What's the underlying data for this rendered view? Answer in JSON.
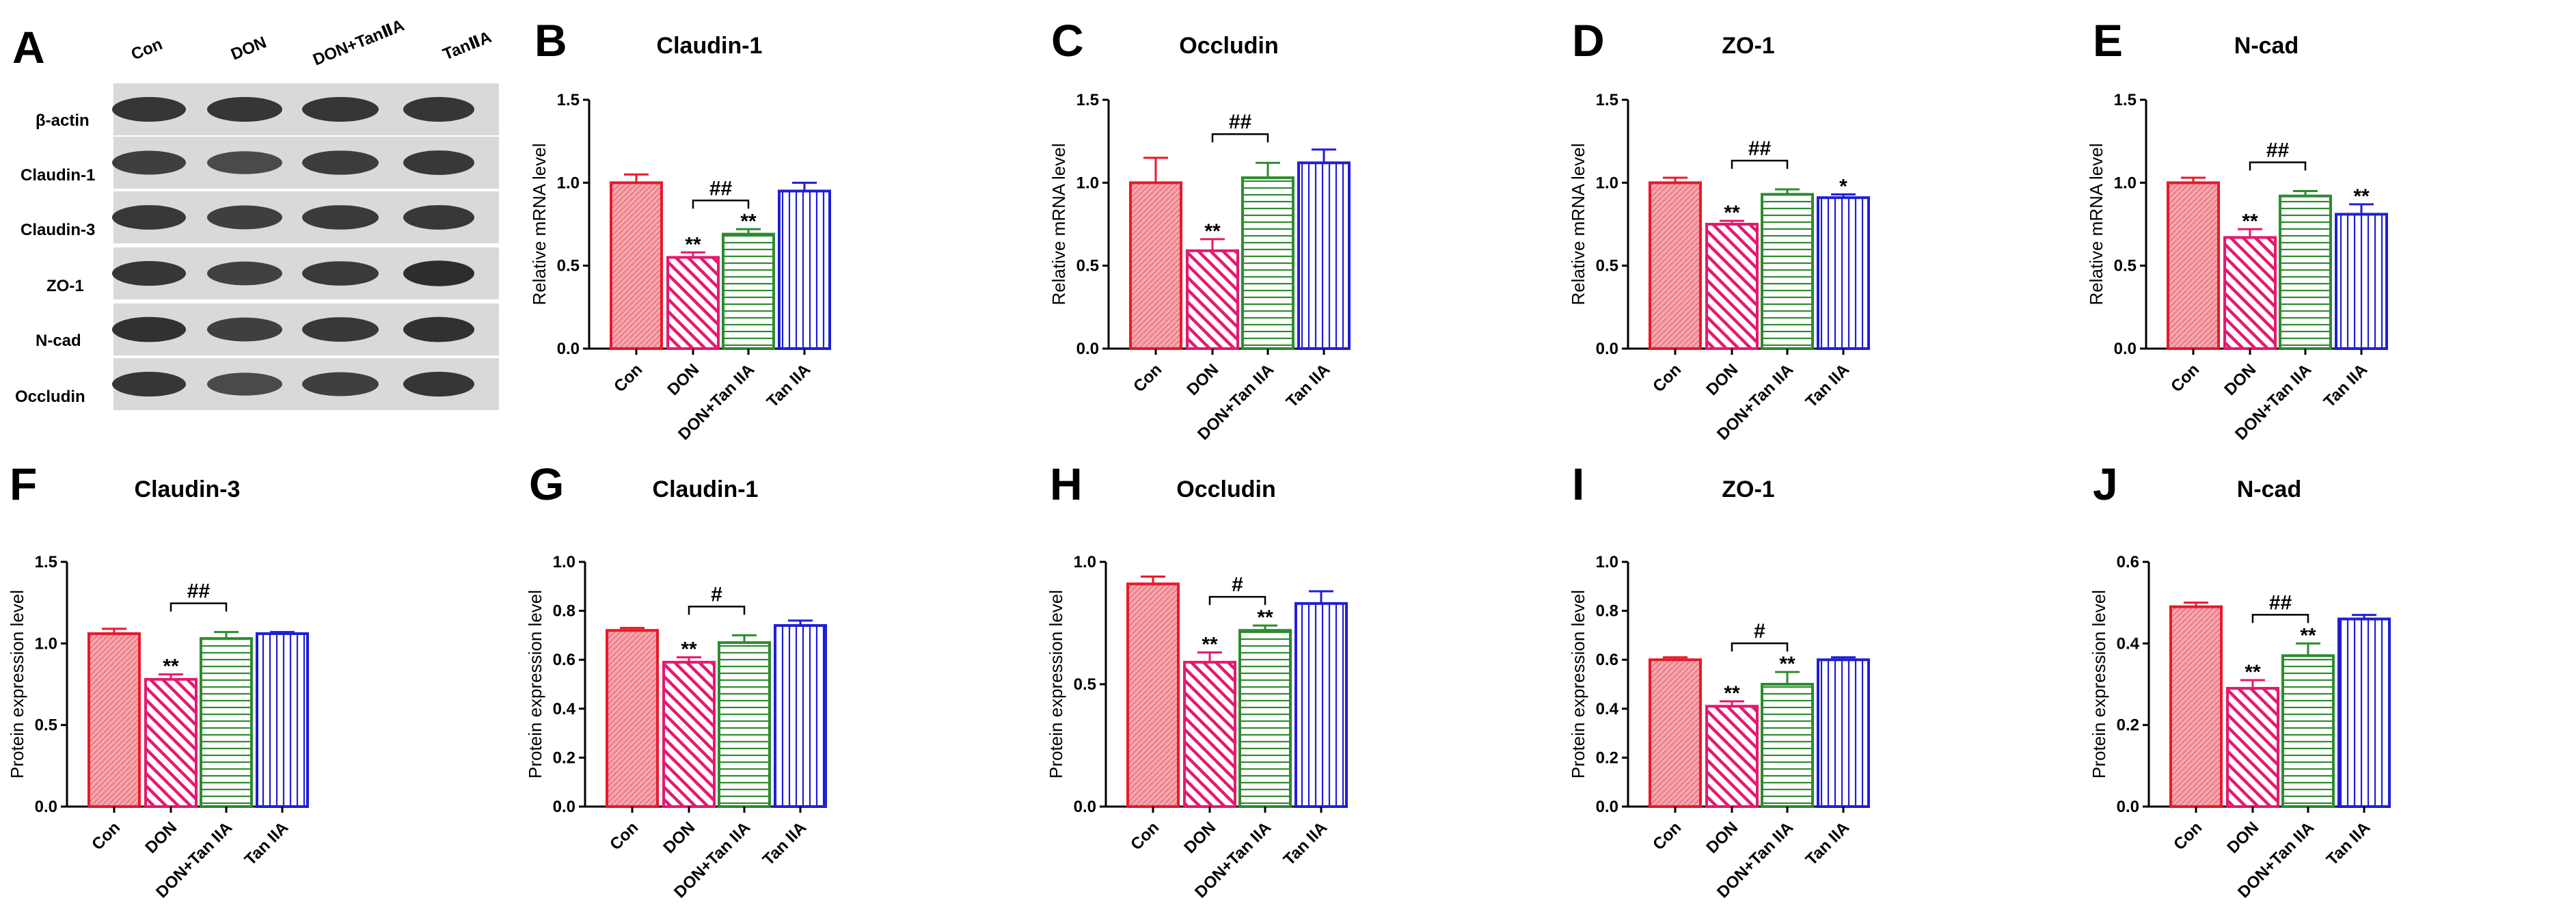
{
  "figure": {
    "panel_labels": [
      "A",
      "B",
      "C",
      "D",
      "E",
      "F",
      "G",
      "H",
      "I",
      "J"
    ]
  },
  "western_blot": {
    "label": "A",
    "columns": [
      "Con",
      "DON",
      "DON+TanⅡA",
      "TanⅡA"
    ],
    "rows": [
      "β-actin",
      "Claudin-1",
      "Claudin-3",
      "ZO-1",
      "N-cad",
      "Occludin"
    ]
  },
  "colors": {
    "Con": "#e8192c",
    "DON": "#e5196e",
    "DON+Tan IIA": "#2e8b2e",
    "Tan IIA": "#1f1fd6"
  },
  "chart_data": [
    {
      "label": "B",
      "type": "bar",
      "title": "Claudin-1",
      "ylabel": "Relative mRNA level",
      "categories": [
        "Con",
        "DON",
        "DON+Tan IIA",
        "Tan IIA"
      ],
      "values": [
        1.0,
        0.55,
        0.69,
        0.95
      ],
      "errors": [
        0.05,
        0.03,
        0.03,
        0.05
      ],
      "significance": [
        "",
        "**",
        "**",
        ""
      ],
      "bracket": "##",
      "ylim": [
        0,
        1.5
      ],
      "yticks": [
        "0.0",
        "0.5",
        "1.0",
        "1.5"
      ]
    },
    {
      "label": "C",
      "type": "bar",
      "title": "Occludin",
      "ylabel": "Relative mRNA level",
      "categories": [
        "Con",
        "DON",
        "DON+Tan IIA",
        "Tan IIA"
      ],
      "values": [
        1.0,
        0.59,
        1.03,
        1.12
      ],
      "errors": [
        0.15,
        0.07,
        0.09,
        0.08
      ],
      "significance": [
        "",
        "**",
        "",
        ""
      ],
      "bracket": "##",
      "ylim": [
        0,
        1.5
      ],
      "yticks": [
        "0.0",
        "0.5",
        "1.0",
        "1.5"
      ]
    },
    {
      "label": "D",
      "type": "bar",
      "title": "ZO-1",
      "ylabel": "Relative mRNA level",
      "categories": [
        "Con",
        "DON",
        "DON+Tan IIA",
        "Tan IIA"
      ],
      "values": [
        1.0,
        0.75,
        0.93,
        0.91
      ],
      "errors": [
        0.03,
        0.02,
        0.03,
        0.02
      ],
      "significance": [
        "",
        "**",
        "",
        "*"
      ],
      "bracket": "##",
      "ylim": [
        0,
        1.5
      ],
      "yticks": [
        "0.0",
        "0.5",
        "1.0",
        "1.5"
      ]
    },
    {
      "label": "E",
      "type": "bar",
      "title": "N-cad",
      "ylabel": "Relative mRNA level",
      "categories": [
        "Con",
        "DON",
        "DON+Tan IIA",
        "Tan IIA"
      ],
      "values": [
        1.0,
        0.67,
        0.92,
        0.81
      ],
      "errors": [
        0.03,
        0.05,
        0.03,
        0.06
      ],
      "significance": [
        "",
        "**",
        "",
        "**"
      ],
      "bracket": "##",
      "ylim": [
        0,
        1.5
      ],
      "yticks": [
        "0.0",
        "0.5",
        "1.0",
        "1.5"
      ]
    },
    {
      "label": "F",
      "type": "bar",
      "title": "Claudin-3",
      "ylabel": "Protein expression level",
      "categories": [
        "Con",
        "DON",
        "DON+Tan IIA",
        "Tan IIA"
      ],
      "values": [
        1.06,
        0.78,
        1.03,
        1.06
      ],
      "errors": [
        0.03,
        0.03,
        0.04,
        0.01
      ],
      "significance": [
        "",
        "**",
        "",
        ""
      ],
      "bracket": "##",
      "ylim": [
        0,
        1.5
      ],
      "yticks": [
        "0.0",
        "0.5",
        "1.0",
        "1.5"
      ]
    },
    {
      "label": "G",
      "type": "bar",
      "title": "Claudin-1",
      "ylabel": "Protein expression level",
      "categories": [
        "Con",
        "DON",
        "DON+Tan IIA",
        "Tan IIA"
      ],
      "values": [
        0.72,
        0.59,
        0.67,
        0.74
      ],
      "errors": [
        0.01,
        0.02,
        0.03,
        0.02
      ],
      "significance": [
        "",
        "**",
        "",
        ""
      ],
      "bracket": "#",
      "ylim": [
        0,
        1.0
      ],
      "yticks": [
        "0.0",
        "0.2",
        "0.4",
        "0.6",
        "0.8",
        "1.0"
      ]
    },
    {
      "label": "H",
      "type": "bar",
      "title": "Occludin",
      "ylabel": "Protein expression level",
      "categories": [
        "Con",
        "DON",
        "DON+Tan IIA",
        "Tan IIA"
      ],
      "values": [
        0.91,
        0.59,
        0.72,
        0.83
      ],
      "errors": [
        0.03,
        0.04,
        0.02,
        0.05
      ],
      "significance": [
        "",
        "**",
        "**",
        ""
      ],
      "bracket": "#",
      "ylim": [
        0,
        1.0
      ],
      "yticks": [
        "0.0",
        "0.5",
        "1.0"
      ]
    },
    {
      "label": "I",
      "type": "bar",
      "title": "ZO-1",
      "ylabel": "Protein expression level",
      "categories": [
        "Con",
        "DON",
        "DON+Tan IIA",
        "Tan IIA"
      ],
      "values": [
        0.6,
        0.41,
        0.5,
        0.6
      ],
      "errors": [
        0.01,
        0.02,
        0.05,
        0.01
      ],
      "significance": [
        "",
        "**",
        "**",
        ""
      ],
      "bracket": "#",
      "ylim": [
        0,
        1.0
      ],
      "yticks": [
        "0.0",
        "0.2",
        "0.4",
        "0.6",
        "0.8",
        "1.0"
      ]
    },
    {
      "label": "J",
      "type": "bar",
      "title": "N-cad",
      "ylabel": "Protein expression level",
      "categories": [
        "Con",
        "DON",
        "DON+Tan IIA",
        "Tan IIA"
      ],
      "values": [
        0.49,
        0.29,
        0.37,
        0.46
      ],
      "errors": [
        0.01,
        0.02,
        0.03,
        0.01
      ],
      "significance": [
        "",
        "**",
        "**",
        ""
      ],
      "bracket": "##",
      "ylim": [
        0,
        0.6
      ],
      "yticks": [
        "0.0",
        "0.2",
        "0.4",
        "0.6"
      ]
    }
  ]
}
